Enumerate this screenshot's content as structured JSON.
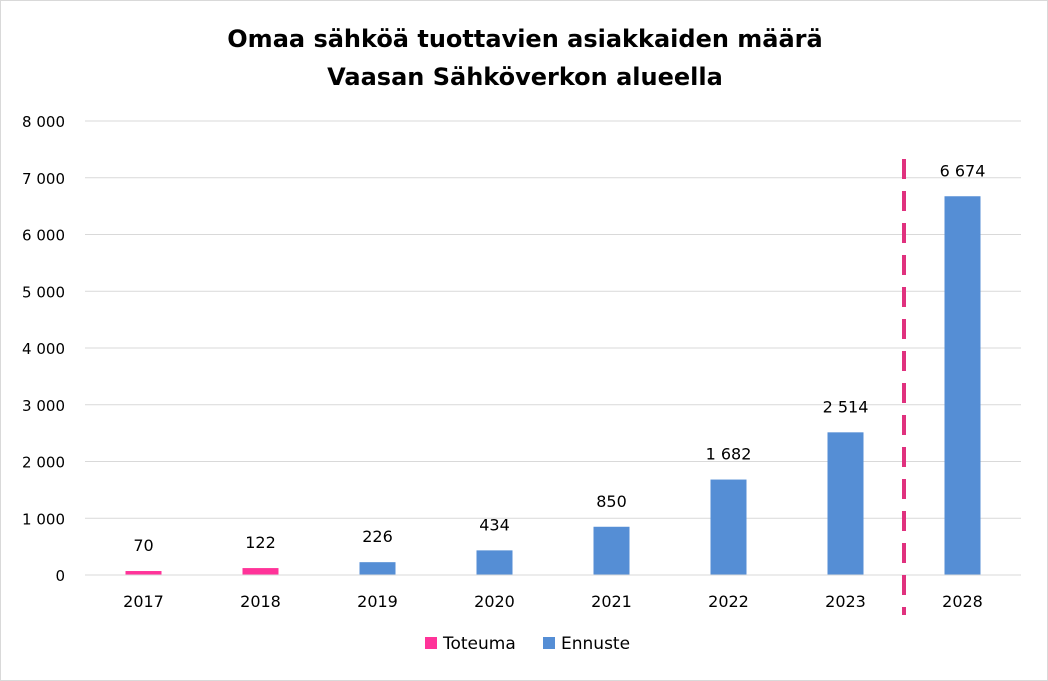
{
  "chart_data": {
    "type": "bar",
    "title_lines": [
      "Omaa sähköä tuottavien asiakkaiden määrä",
      "Vaasan Sähköverkon alueella"
    ],
    "categories": [
      "2017",
      "2018",
      "2019",
      "2020",
      "2021",
      "2022",
      "2023",
      "2028"
    ],
    "values": [
      70,
      122,
      226,
      434,
      850,
      1682,
      2514,
      6674
    ],
    "value_labels": [
      "70",
      "122",
      "226",
      "434",
      "850",
      "1 682",
      "2 514",
      "6 674"
    ],
    "point_series": [
      "Toteuma",
      "Toteuma",
      "Ennuste",
      "Ennuste",
      "Ennuste",
      "Ennuste",
      "Ennuste",
      "Ennuste"
    ],
    "series": [
      {
        "name": "Toteuma",
        "color": "#ff3399"
      },
      {
        "name": "Ennuste",
        "color": "#558ed5"
      }
    ],
    "ylim": [
      0,
      8000
    ],
    "yticks": [
      0,
      1000,
      2000,
      3000,
      4000,
      5000,
      6000,
      7000,
      8000
    ],
    "ytick_labels": [
      "0",
      "1 000",
      "2 000",
      "3 000",
      "4 000",
      "5 000",
      "6 000",
      "7 000",
      "8 000"
    ],
    "grid": true,
    "legend_position": "bottom",
    "divider": {
      "between": [
        "2023",
        "2028"
      ],
      "color": "#e0317e",
      "style": "dashed"
    },
    "xlabel": "",
    "ylabel": ""
  }
}
